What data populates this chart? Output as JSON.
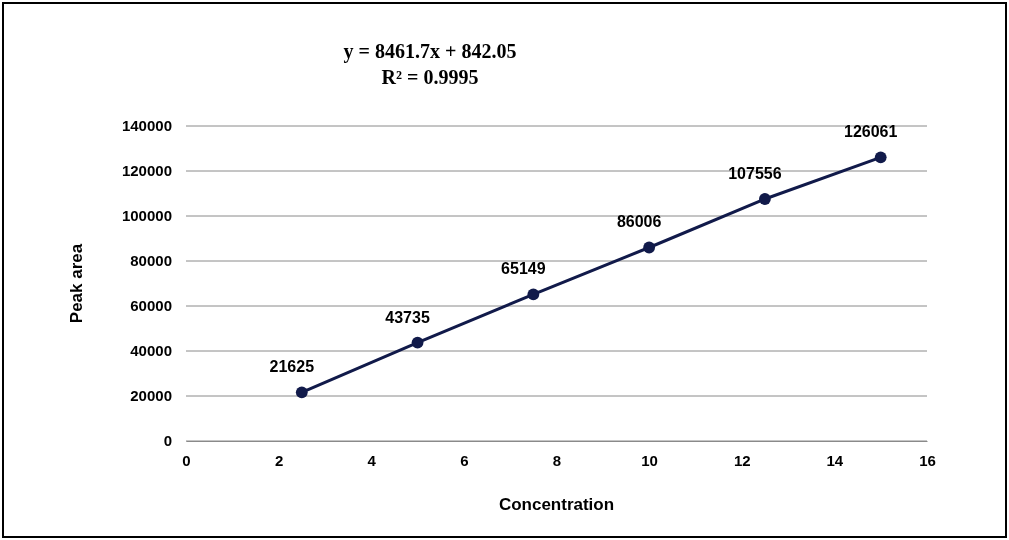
{
  "chart_data": {
    "type": "line",
    "title": "y = 8461.7x + 842.05",
    "subtitle": "R² = 0.9995",
    "xlabel": "Concentration",
    "ylabel": "Peak area",
    "x": [
      2.5,
      5,
      7.5,
      10,
      12.5,
      15
    ],
    "series": [
      {
        "color": "#111a4a",
        "values": [
          21625,
          43735,
          65149,
          86006,
          107556,
          126061
        ]
      }
    ],
    "xlim": [
      0,
      16
    ],
    "xticks": [
      0,
      2,
      4,
      6,
      8,
      10,
      12,
      14,
      16
    ],
    "ylim": [
      0,
      140000
    ],
    "yticks": [
      0,
      20000,
      40000,
      60000,
      80000,
      100000,
      120000,
      140000
    ],
    "grid": "y",
    "marker": "circle",
    "line_style": "solid",
    "data_labels": true
  }
}
